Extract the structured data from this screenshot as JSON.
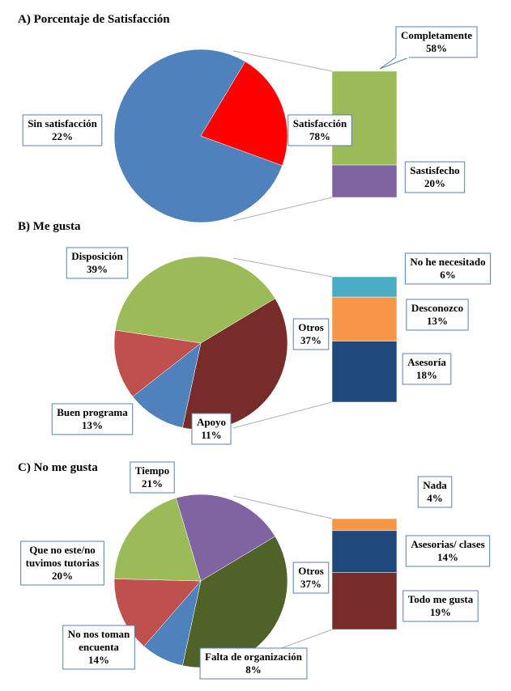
{
  "chart_data": [
    {
      "type": "pie",
      "title": "A) Porcentaje de Satisfacción",
      "slices": [
        {
          "label": "Satisfacción",
          "value": 78,
          "display": "78%",
          "color": "#4F81BD"
        },
        {
          "label": "Sin satisfacción",
          "value": 22,
          "display": "22%",
          "color": "#FF0000"
        }
      ],
      "breakdown_of": "Satisfacción",
      "stack": [
        {
          "label": "Completamente",
          "value": 58,
          "display": "58%",
          "color": "#9BBB59"
        },
        {
          "label": "Sastisfecho",
          "value": 20,
          "display": "20%",
          "color": "#8064A2"
        }
      ]
    },
    {
      "type": "pie",
      "title": "B) Me gusta",
      "slices": [
        {
          "label": "Otros",
          "value": 37,
          "display": "37%",
          "color": "#772C2A"
        },
        {
          "label": "Apoyo",
          "value": 11,
          "display": "11%",
          "color": "#4F81BD"
        },
        {
          "label": "Buen programa",
          "value": 13,
          "display": "13%",
          "color": "#C0504D"
        },
        {
          "label": "Disposición",
          "value": 39,
          "display": "39%",
          "color": "#9BBB59"
        }
      ],
      "breakdown_of": "Otros",
      "stack": [
        {
          "label": "No he necesitado",
          "value": 6,
          "display": "6%",
          "color": "#4BACC6"
        },
        {
          "label": "Desconozco",
          "value": 13,
          "display": "13%",
          "color": "#F79646"
        },
        {
          "label": "Asesoría",
          "value": 18,
          "display": "18%",
          "color": "#1F497D"
        }
      ]
    },
    {
      "type": "pie",
      "title": "C) No me gusta",
      "slices": [
        {
          "label": "Otros",
          "value": 37,
          "display": "37%",
          "color": "#4F6228"
        },
        {
          "label": "Falta de organización",
          "value": 8,
          "display": "8%",
          "color": "#4F81BD"
        },
        {
          "label": "No nos toman encuenta",
          "value": 14,
          "display": "14%",
          "color": "#C0504D"
        },
        {
          "label": "Que no este/no tuvimos tutorias",
          "value": 20,
          "display": "20%",
          "color": "#9BBB59"
        },
        {
          "label": "Tiempo",
          "value": 21,
          "display": "21%",
          "color": "#8064A2"
        }
      ],
      "breakdown_of": "Otros",
      "stack": [
        {
          "label": "Nada",
          "value": 4,
          "display": "4%",
          "color": "#F79646"
        },
        {
          "label": "Asesorias/ clases",
          "value": 14,
          "display": "14%",
          "color": "#1F497D"
        },
        {
          "label": "Todo me gusta",
          "value": 19,
          "display": "19%",
          "color": "#772C2A"
        }
      ]
    }
  ]
}
